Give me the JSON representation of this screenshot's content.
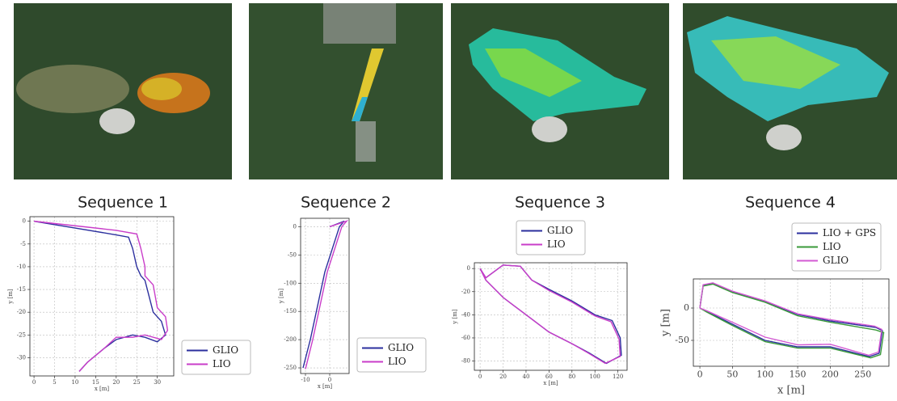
{
  "panels": [
    "Sequence 1",
    "Sequence 2",
    "Sequence 3",
    "Sequence 4"
  ],
  "chart_data": [
    {
      "type": "line",
      "xlabel": "x [m]",
      "ylabel": "y [m]",
      "xlim": [
        -1,
        34
      ],
      "ylim": [
        -34,
        1
      ],
      "xticks": [
        0,
        5,
        10,
        15,
        20,
        25,
        30
      ],
      "yticks": [
        0,
        -5,
        -10,
        -15,
        -20,
        -25,
        -30
      ],
      "grid": true,
      "legend": "right",
      "series": [
        {
          "name": "GLIO",
          "color": "#2b2f9e",
          "x": [
            0,
            10,
            20,
            23,
            24,
            25,
            26,
            27,
            29,
            31,
            32,
            30,
            27,
            24,
            20,
            17,
            13,
            11
          ],
          "values": [
            0,
            -1.5,
            -3,
            -3.5,
            -6,
            -10,
            -12,
            -13,
            -20,
            -22,
            -25,
            -26.5,
            -25.5,
            -25,
            -26,
            -28,
            -31,
            -33
          ]
        },
        {
          "name": "LIO",
          "color": "#c93dc9",
          "x": [
            0,
            10,
            20,
            25,
            26,
            27,
            27,
            29,
            30,
            32,
            32.5,
            31,
            27,
            24,
            20,
            17,
            13,
            11
          ],
          "values": [
            0,
            -1,
            -2,
            -2.8,
            -6,
            -10,
            -12,
            -14,
            -19,
            -21,
            -24,
            -26,
            -25,
            -25.5,
            -25.5,
            -28,
            -31,
            -33
          ]
        }
      ]
    },
    {
      "type": "line",
      "xlabel": "x [m]",
      "ylabel": "y [m]",
      "xlim": [
        -12,
        8
      ],
      "ylim": [
        -260,
        15
      ],
      "xticks": [
        -10,
        0
      ],
      "yticks": [
        0,
        -50,
        -100,
        -150,
        -200,
        -250
      ],
      "grid": true,
      "legend": "right",
      "series": [
        {
          "name": "GLIO",
          "color": "#2b2f9e",
          "x": [
            0,
            6,
            4,
            -2,
            -8,
            -11
          ],
          "values": [
            0,
            10,
            0,
            -80,
            -200,
            -250
          ]
        },
        {
          "name": "LIO",
          "color": "#c93dc9",
          "x": [
            0,
            7,
            5,
            -1,
            -7,
            -10
          ],
          "values": [
            0,
            10,
            0,
            -80,
            -200,
            -252
          ]
        }
      ]
    },
    {
      "type": "line",
      "xlabel": "x [m]",
      "ylabel": "y [m]",
      "xlim": [
        -5,
        128
      ],
      "ylim": [
        -88,
        5
      ],
      "xticks": [
        0,
        20,
        40,
        60,
        80,
        100,
        120
      ],
      "yticks": [
        0,
        -20,
        -40,
        -60,
        -80
      ],
      "grid": true,
      "legend": "top",
      "series": [
        {
          "name": "GLIO",
          "color": "#2b2f9e",
          "x": [
            0,
            5,
            20,
            35,
            45,
            60,
            80,
            100,
            115,
            122,
            123,
            110,
            95,
            80,
            60,
            40,
            20,
            5,
            0
          ],
          "values": [
            0,
            -8,
            3,
            2,
            -10,
            -18,
            -28,
            -40,
            -45,
            -60,
            -75,
            -82,
            -73,
            -65,
            -55,
            -40,
            -25,
            -10,
            0
          ]
        },
        {
          "name": "LIO",
          "color": "#c93dc9",
          "x": [
            0,
            5,
            20,
            35,
            45,
            60,
            80,
            100,
            114,
            121,
            122,
            109,
            94,
            80,
            60,
            40,
            20,
            5,
            0
          ],
          "values": [
            0,
            -8,
            3,
            2,
            -10,
            -19,
            -29,
            -41,
            -46,
            -61,
            -76,
            -82,
            -73,
            -65,
            -55,
            -40,
            -25,
            -10,
            0
          ]
        }
      ]
    },
    {
      "type": "line",
      "xlabel": "x [m]",
      "ylabel": "y [m]",
      "xlim": [
        -10,
        290
      ],
      "ylim": [
        -90,
        45
      ],
      "xticks": [
        0,
        50,
        100,
        150,
        200,
        250
      ],
      "yticks": [
        0,
        -50
      ],
      "grid": true,
      "legend": "top",
      "series": [
        {
          "name": "LIO + GPS",
          "color": "#2b2f9e",
          "x": [
            0,
            5,
            20,
            50,
            100,
            150,
            200,
            270,
            280,
            275,
            260,
            200,
            150,
            100,
            50,
            10,
            0
          ],
          "values": [
            0,
            35,
            38,
            25,
            10,
            -10,
            -20,
            -30,
            -35,
            -70,
            -75,
            -60,
            -60,
            -50,
            -25,
            -5,
            0
          ]
        },
        {
          "name": "LIO",
          "color": "#3a9a3a",
          "x": [
            0,
            5,
            20,
            50,
            100,
            150,
            200,
            270,
            282,
            277,
            262,
            200,
            150,
            100,
            50,
            10,
            0
          ],
          "values": [
            0,
            34,
            37,
            24,
            9,
            -12,
            -22,
            -34,
            -38,
            -72,
            -77,
            -62,
            -62,
            -52,
            -27,
            -6,
            0
          ]
        },
        {
          "name": "GLIO",
          "color": "#d35ad3",
          "x": [
            0,
            5,
            20,
            50,
            100,
            150,
            200,
            268,
            279,
            274,
            259,
            200,
            150,
            100,
            50,
            10,
            0
          ],
          "values": [
            0,
            36,
            39,
            26,
            11,
            -9,
            -18,
            -28,
            -33,
            -68,
            -73,
            -56,
            -57,
            -45,
            -22,
            -4,
            0
          ]
        }
      ]
    }
  ]
}
